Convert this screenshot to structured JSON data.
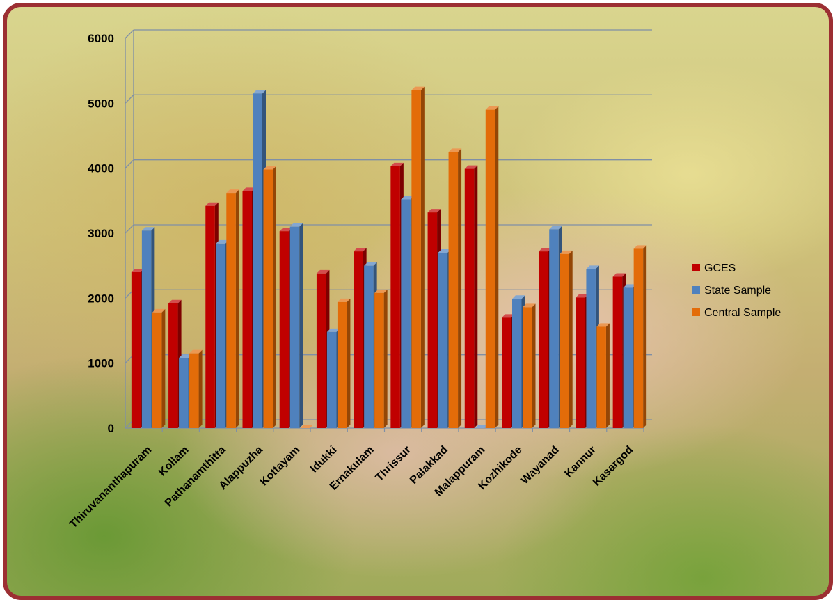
{
  "chart_data": {
    "type": "bar",
    "categories": [
      "Thiruvananthapuram",
      "Kollam",
      "Pathanamthitta",
      "Alappuzha",
      "Kottayam",
      "Idukki",
      "Ernakulam",
      "Thrissur",
      "Palakkad",
      "Malappuram",
      "Kozhikode",
      "Wayanad",
      "Kannur",
      "Kasargod"
    ],
    "series": [
      {
        "name": "GCES",
        "color": "#c00000",
        "values": [
          2400,
          1920,
          3420,
          3650,
          3030,
          2380,
          2720,
          4030,
          3320,
          3990,
          1700,
          2720,
          2010,
          2330
        ]
      },
      {
        "name": "State Sample",
        "color": "#4f81bd",
        "values": [
          3040,
          1080,
          2840,
          5150,
          3100,
          1480,
          2500,
          3520,
          2700,
          0,
          1990,
          3060,
          2450,
          2160
        ]
      },
      {
        "name": "Central Sample",
        "color": "#e36c09",
        "values": [
          1780,
          1150,
          3620,
          3980,
          0,
          1940,
          2080,
          5200,
          4250,
          4900,
          1860,
          2680,
          1560,
          2760
        ]
      }
    ],
    "yticks": [
      "0",
      "1000",
      "2000",
      "3000",
      "4000",
      "5000",
      "6000"
    ],
    "ylim": [
      0,
      6000
    ],
    "grid": true,
    "legend_position": "right",
    "title": "",
    "xlabel": "",
    "ylabel": ""
  }
}
